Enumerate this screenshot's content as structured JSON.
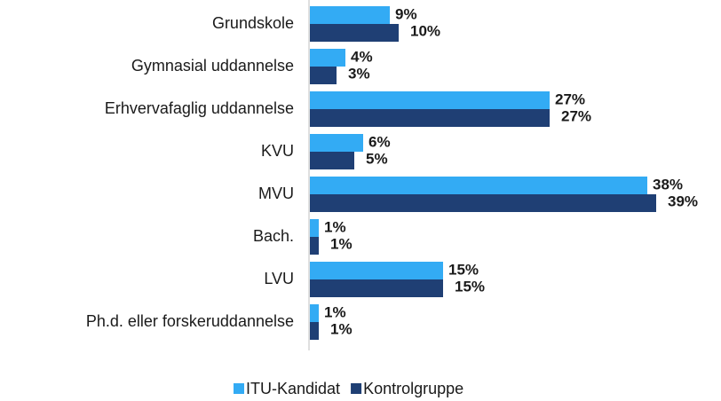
{
  "chart_data": {
    "type": "hbar",
    "categories": [
      "Grundskole",
      "Gymnasial uddannelse",
      "Erhvervafaglig uddannelse",
      "KVU",
      "MVU",
      "Bach.",
      "LVU",
      "Ph.d. eller forskeruddannelse"
    ],
    "xlim": [
      0,
      40
    ],
    "series": [
      {
        "name": "ITU-Kandidat",
        "color": "#33abf4",
        "values": [
          9,
          4,
          27,
          6,
          38,
          1,
          15,
          1
        ],
        "value_labels": [
          "9%",
          "4%",
          "27%",
          "6%",
          "38%",
          "1%",
          "15%",
          "1%"
        ]
      },
      {
        "name": "Kontrolgruppe",
        "color": "#1f3f74",
        "values": [
          10,
          3,
          27,
          5,
          39,
          1,
          15,
          1
        ],
        "value_labels": [
          "10%",
          "3%",
          "27%",
          "5%",
          "39%",
          "1%",
          "15%",
          "1%"
        ]
      }
    ],
    "legend": "bottom"
  }
}
